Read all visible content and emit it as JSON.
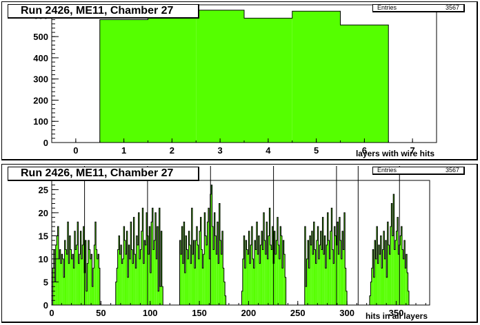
{
  "panels": [
    {
      "title": "Run 2426, ME11, Chamber 27",
      "stats_label": "Entries",
      "stats_value": "3567"
    },
    {
      "title": "Run 2426, ME11, Chamber 27",
      "stats_label": "Entries",
      "stats_value": "3567"
    }
  ],
  "colors": {
    "fill": "#55ff00",
    "line": "#000000"
  },
  "chart_data": [
    {
      "type": "bar",
      "title": "Run 2426, ME11, Chamber 27",
      "xlabel": "layers with wire hits",
      "ylabel": "",
      "xlim": [
        -0.5,
        7.5
      ],
      "ylim": [
        0,
        650
      ],
      "xticks": [
        0,
        1,
        2,
        3,
        4,
        5,
        6,
        7
      ],
      "yticks": [
        0,
        100,
        200,
        300,
        400,
        500,
        600
      ],
      "bins": [
        0.5,
        1.5,
        2.5,
        3.5,
        4.5,
        5.5,
        6.5
      ],
      "categories": [
        "1",
        "2",
        "3",
        "4",
        "5",
        "6"
      ],
      "values": [
        580,
        597,
        625,
        587,
        620,
        555
      ],
      "entries": 3567
    },
    {
      "type": "bar",
      "title": "Run 2426, ME11, Chamber 27",
      "xlabel": "hits in all layers",
      "ylabel": "",
      "xlim": [
        0,
        384
      ],
      "ylim": [
        0,
        27
      ],
      "xticks": [
        0,
        50,
        100,
        150,
        200,
        250,
        300,
        350
      ],
      "yticks": [
        0,
        5,
        10,
        15,
        20,
        25
      ],
      "entries": 3567,
      "groups": [
        {
          "x_start": 1,
          "values": [
            8,
            12,
            5,
            13,
            15,
            17,
            10,
            12,
            9,
            11,
            10,
            6,
            14,
            12,
            11,
            18,
            9,
            15,
            12,
            10,
            11,
            8,
            16,
            12,
            13,
            18,
            9,
            11,
            16,
            10,
            13,
            17,
            7,
            14,
            3,
            9,
            14,
            12,
            10,
            11,
            4,
            8,
            13,
            18,
            12,
            10,
            11,
            8,
            0
          ]
        },
        {
          "x_start": 65,
          "values": [
            5,
            8,
            12,
            15,
            11,
            13,
            9,
            10,
            17,
            14,
            11,
            16,
            6,
            13,
            10,
            18,
            12,
            9,
            19,
            11,
            8,
            15,
            13,
            20,
            10,
            12,
            16,
            21,
            9,
            14,
            13,
            20,
            15,
            11,
            17,
            7,
            18,
            21,
            12,
            14,
            20,
            10,
            17,
            3,
            21,
            4,
            16,
            4
          ]
        },
        {
          "x_start": 130,
          "values": [
            14,
            11,
            17,
            9,
            18,
            7,
            15,
            12,
            10,
            16,
            13,
            9,
            21,
            11,
            14,
            8,
            14,
            17,
            13,
            10,
            16,
            19,
            12,
            8,
            11,
            20,
            15,
            13,
            18,
            21,
            10,
            24,
            26,
            17,
            12,
            20,
            15,
            11,
            18,
            9,
            22,
            14,
            11,
            16,
            8,
            5,
            2
          ]
        },
        {
          "x_start": 193,
          "values": [
            3,
            10,
            15,
            8,
            14,
            12,
            11,
            16,
            9,
            13,
            17,
            10,
            8,
            14,
            12,
            18,
            11,
            15,
            9,
            13,
            16,
            12,
            20,
            14,
            11,
            18,
            10,
            15,
            21,
            13,
            12,
            17,
            9,
            16,
            11,
            14,
            19,
            13,
            10,
            17,
            15,
            8,
            14,
            11,
            6
          ]
        },
        {
          "x_start": 257,
          "values": [
            17,
            4,
            10,
            14,
            8,
            15,
            13,
            16,
            11,
            18,
            12,
            9,
            14,
            17,
            10,
            13,
            16,
            12,
            19,
            11,
            15,
            8,
            13,
            20,
            14,
            10,
            16,
            21,
            12,
            9,
            17,
            15,
            13,
            18,
            11,
            19,
            14,
            10,
            16,
            12,
            20,
            8,
            3
          ]
        },
        {
          "x_start": 323,
          "values": [
            2,
            5,
            8,
            12,
            6,
            14,
            10,
            17,
            9,
            13,
            11,
            15,
            8,
            12,
            16,
            10,
            14,
            6,
            18,
            13,
            11,
            17,
            22,
            15,
            24,
            12,
            14,
            16,
            19,
            11,
            13,
            15,
            17,
            12,
            10,
            14,
            8,
            11,
            7,
            3
          ]
        }
      ],
      "spikes": [
        33,
        97,
        161,
        225,
        289,
        311,
        353
      ]
    }
  ]
}
